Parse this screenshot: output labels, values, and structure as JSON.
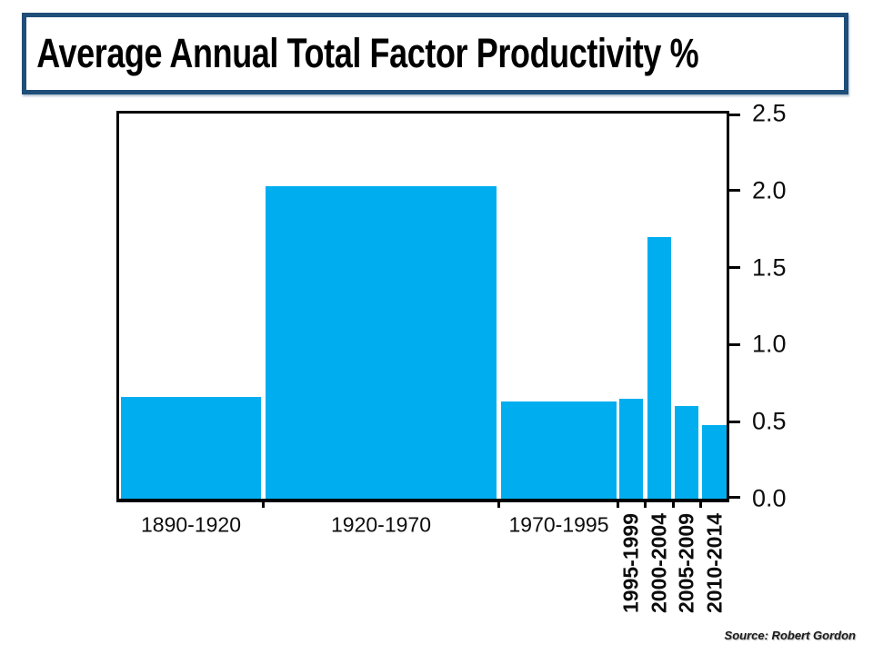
{
  "title_box": {
    "text": "Average Annual Total Factor Productivity %",
    "border_color": "#1F4E79",
    "text_color": "#000000"
  },
  "source_note": {
    "text": "Source: Robert Gordon"
  },
  "chart_data": {
    "type": "bar",
    "title": "Average Annual Total Factor Productivity %",
    "categories": [
      "1890-1920",
      "1920-1970",
      "1970-1995",
      "1995-1999",
      "2000-2004",
      "2005-2009",
      "2010-2014"
    ],
    "values": [
      0.66,
      2.03,
      0.63,
      0.65,
      1.7,
      0.6,
      0.48
    ],
    "xlabel": "",
    "ylabel": "",
    "ylim": [
      0,
      2.5
    ],
    "ytick_labels": [
      "0.0",
      "0.5",
      "1.0",
      "1.5",
      "2.0",
      "2.5"
    ],
    "yaxis_side": "right",
    "grid": false,
    "legend": false,
    "bar_color": "#00AEEF",
    "axis_color": "#000000",
    "source": "Source: Robert Gordon"
  }
}
